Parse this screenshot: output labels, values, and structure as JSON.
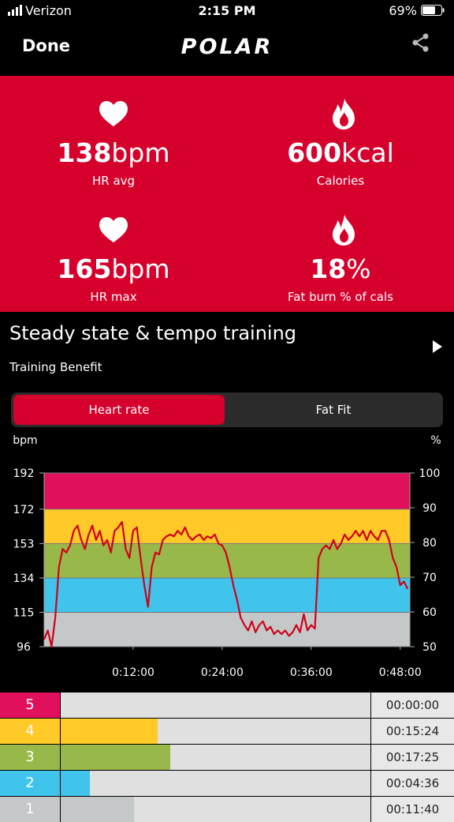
{
  "status_bar": {
    "carrier": "Verizon",
    "time": "2:15 PM",
    "battery": "69%"
  },
  "nav": {
    "done": "Done",
    "logo": "POLAR"
  },
  "stats": [
    {
      "value": "138",
      "unit": "bpm",
      "label": "HR avg",
      "icon": "heart"
    },
    {
      "value": "600",
      "unit": "kcal",
      "label": "Calories",
      "icon": "flame"
    },
    {
      "value": "165",
      "unit": "bpm",
      "label": "HR max",
      "icon": "heart"
    },
    {
      "value": "18",
      "unit": "%",
      "label": "Fat burn % of cals",
      "icon": "flame"
    }
  ],
  "training": {
    "title": "Steady state & tempo training",
    "subtitle": "Training Benefit"
  },
  "tabs": {
    "items": [
      "Heart rate",
      "Fat Fit"
    ],
    "selected": 0
  },
  "chart_data": {
    "type": "line",
    "ylabel": "bpm",
    "y2label": "%",
    "ylim": [
      96,
      192
    ],
    "yticks": [
      96,
      115,
      134,
      153,
      172,
      192
    ],
    "y2lim": [
      50,
      100
    ],
    "y2ticks": [
      50,
      60,
      70,
      80,
      90,
      100
    ],
    "xlim": [
      0,
      49.3
    ],
    "xticks": [
      {
        "value": 12,
        "label": "0:12:00"
      },
      {
        "value": 24,
        "label": "0:24:00"
      },
      {
        "value": 36,
        "label": "0:36:00"
      },
      {
        "value": 48,
        "label": "0:48:00"
      }
    ],
    "zones": [
      {
        "from": 96,
        "to": 115,
        "color": "#c4c8c8"
      },
      {
        "from": 115,
        "to": 134,
        "color": "#40c4ec"
      },
      {
        "from": 134,
        "to": 153,
        "color": "#99b84a"
      },
      {
        "from": 153,
        "to": 172,
        "color": "#ffc928"
      },
      {
        "from": 172,
        "to": 192,
        "color": "#e0105c"
      }
    ],
    "x": [
      0,
      0.5,
      1,
      1.5,
      2,
      2.5,
      3,
      3.5,
      4,
      4.5,
      5,
      5.5,
      6,
      6.5,
      7,
      7.5,
      8,
      8.5,
      9,
      9.5,
      10,
      10.5,
      11,
      11.5,
      12,
      12.5,
      13,
      13.5,
      14,
      14.5,
      15,
      15.5,
      16,
      16.5,
      17,
      17.5,
      18,
      18.5,
      19,
      19.5,
      20,
      20.5,
      21,
      21.5,
      22,
      22.5,
      23,
      23.5,
      24,
      24.5,
      25,
      25.5,
      26,
      26.5,
      27,
      27.5,
      28,
      28.5,
      29,
      29.5,
      30,
      30.5,
      31,
      31.5,
      32,
      32.5,
      33,
      33.5,
      34,
      34.5,
      35,
      35.5,
      36,
      36.5,
      37,
      37.5,
      38,
      38.5,
      39,
      39.5,
      40,
      40.5,
      41,
      41.5,
      42,
      42.5,
      43,
      43.5,
      44,
      44.5,
      45,
      45.5,
      46,
      46.5,
      47,
      47.5,
      48,
      48.5,
      49
    ],
    "series": [
      {
        "color": "#d0021b",
        "values": [
          100,
          105,
          96,
          112,
          140,
          150,
          148,
          152,
          160,
          163,
          155,
          150,
          158,
          163,
          155,
          160,
          152,
          155,
          148,
          160,
          162,
          165,
          150,
          145,
          160,
          162,
          145,
          130,
          118,
          140,
          148,
          147,
          155,
          157,
          158,
          157,
          160,
          158,
          162,
          157,
          155,
          157,
          158,
          155,
          157,
          156,
          158,
          153,
          152,
          148,
          140,
          130,
          122,
          112,
          108,
          105,
          110,
          104,
          108,
          110,
          105,
          107,
          103,
          105,
          103,
          105,
          102,
          104,
          108,
          104,
          114,
          105,
          108,
          106,
          145,
          150,
          152,
          150,
          155,
          150,
          153,
          158,
          155,
          157,
          160,
          157,
          160,
          155,
          160,
          157,
          155,
          160,
          160,
          155,
          145,
          140,
          130,
          132,
          128
        ]
      }
    ]
  },
  "zone_table": {
    "rows": [
      {
        "zone": "5",
        "color": "#e0105c",
        "time": "00:00:00"
      },
      {
        "zone": "4",
        "color": "#ffc928",
        "time": "00:15:24"
      },
      {
        "zone": "3",
        "color": "#99b84a",
        "time": "00:17:25"
      },
      {
        "zone": "2",
        "color": "#40c4ec",
        "time": "00:04:36"
      },
      {
        "zone": "1",
        "color": "#c4c8c8",
        "time": "00:11:40"
      }
    ]
  }
}
